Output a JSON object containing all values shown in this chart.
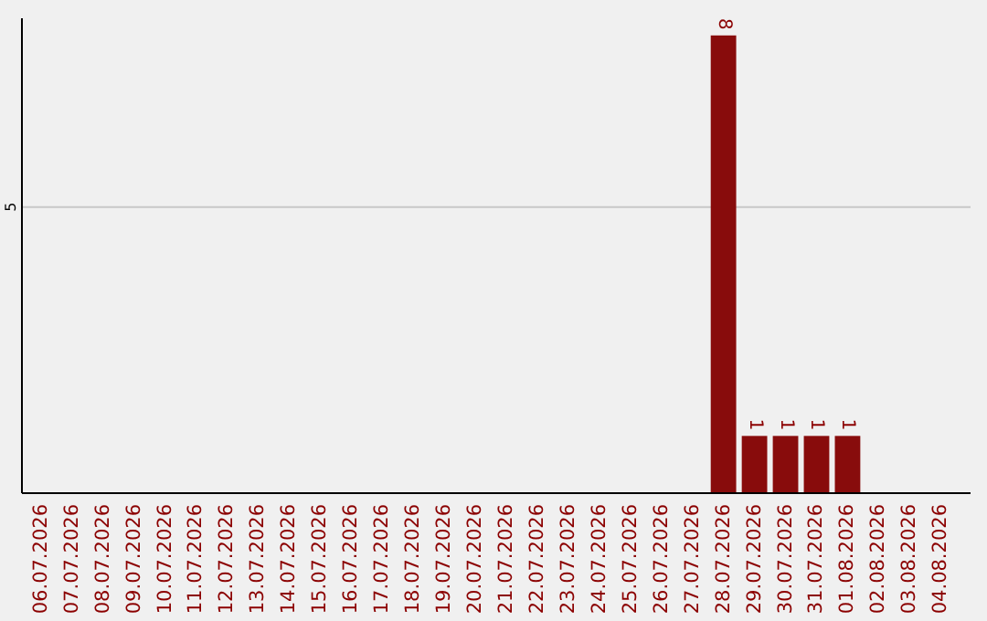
{
  "chart_data": {
    "type": "bar",
    "categories": [
      "06.07.2026",
      "07.07.2026",
      "08.07.2026",
      "09.07.2026",
      "10.07.2026",
      "11.07.2026",
      "12.07.2026",
      "13.07.2026",
      "14.07.2026",
      "15.07.2026",
      "16.07.2026",
      "17.07.2026",
      "18.07.2026",
      "19.07.2026",
      "20.07.2026",
      "21.07.2026",
      "22.07.2026",
      "23.07.2026",
      "24.07.2026",
      "25.07.2026",
      "26.07.2026",
      "27.07.2026",
      "28.07.2026",
      "29.07.2026",
      "30.07.2026",
      "31.07.2026",
      "01.08.2026",
      "02.08.2026",
      "03.08.2026",
      "04.08.2026"
    ],
    "values": [
      null,
      null,
      null,
      null,
      null,
      null,
      null,
      null,
      null,
      null,
      null,
      null,
      null,
      null,
      null,
      null,
      null,
      null,
      null,
      null,
      null,
      null,
      8,
      1,
      1,
      1,
      1,
      null,
      null,
      null
    ],
    "ylim": [
      0,
      8.3
    ],
    "value_labels": [
      null,
      null,
      null,
      null,
      null,
      null,
      null,
      null,
      null,
      null,
      null,
      null,
      null,
      null,
      null,
      null,
      null,
      null,
      null,
      null,
      null,
      null,
      "8",
      "1",
      "1",
      "1",
      "1",
      null,
      null,
      null
    ],
    "color": "#880c0c",
    "yticks": [
      5
    ],
    "grid": "y"
  }
}
